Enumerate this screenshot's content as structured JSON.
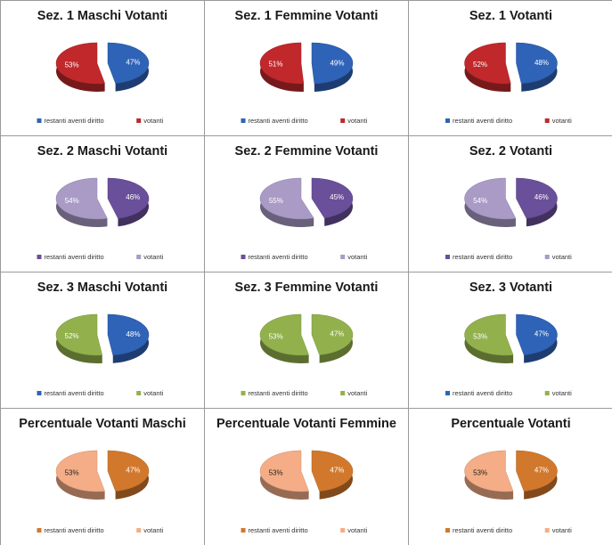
{
  "colors": {
    "red": "#c0282b",
    "blue": "#2e63b8",
    "purple_dark": "#6a4f9a",
    "purple_light": "#a99bc6",
    "green": "#92b14c",
    "orange_dark": "#d2782c",
    "orange_light": "#f4ad86"
  },
  "chart_data": [
    {
      "type": "pie",
      "title": "Sez. 1 Maschi Votanti",
      "slices": [
        {
          "name": "restanti aventi diritto",
          "value": 47,
          "label": "47%",
          "color": "#2e63b8"
        },
        {
          "name": "votanti",
          "value": 53,
          "label": "53%",
          "color": "#c0282b"
        }
      ]
    },
    {
      "type": "pie",
      "title": "Sez. 1  Femmine Votanti",
      "slices": [
        {
          "name": "restanti aventi diritto",
          "value": 49,
          "label": "49%",
          "color": "#2e63b8"
        },
        {
          "name": "votanti",
          "value": 51,
          "label": "51%",
          "color": "#c0282b"
        }
      ]
    },
    {
      "type": "pie",
      "title": "Sez. 1  Votanti",
      "slices": [
        {
          "name": "restanti aventi diritto",
          "value": 48,
          "label": "48%",
          "color": "#2e63b8"
        },
        {
          "name": "votanti",
          "value": 52,
          "label": "52%",
          "color": "#c0282b"
        }
      ]
    },
    {
      "type": "pie",
      "title": "Sez. 2  Maschi Votanti",
      "slices": [
        {
          "name": "restanti aventi diritto",
          "value": 46,
          "label": "46%",
          "color": "#6a4f9a"
        },
        {
          "name": "votanti",
          "value": 54,
          "label": "54%",
          "color": "#a99bc6"
        }
      ]
    },
    {
      "type": "pie",
      "title": "Sez. 2 Femmine Votanti",
      "slices": [
        {
          "name": "restanti aventi diritto",
          "value": 45,
          "label": "45%",
          "color": "#6a4f9a"
        },
        {
          "name": "votanti",
          "value": 55,
          "label": "55%",
          "color": "#a99bc6"
        }
      ]
    },
    {
      "type": "pie",
      "title": "Sez. 2  Votanti",
      "slices": [
        {
          "name": "restanti aventi diritto",
          "value": 46,
          "label": "46%",
          "color": "#6a4f9a"
        },
        {
          "name": "votanti",
          "value": 54,
          "label": "54%",
          "color": "#a99bc6"
        }
      ]
    },
    {
      "type": "pie",
      "title": "Sez. 3 Maschi Votanti",
      "slices": [
        {
          "name": "restanti aventi diritto",
          "value": 48,
          "label": "48%",
          "color": "#2e63b8"
        },
        {
          "name": "votanti",
          "value": 52,
          "label": "52%",
          "color": "#92b14c"
        }
      ]
    },
    {
      "type": "pie",
      "title": "Sez. 3  Femmine Votanti",
      "slices": [
        {
          "name": "restanti aventi diritto",
          "value": 47,
          "label": "47%",
          "color": "#92b14c"
        },
        {
          "name": "votanti",
          "value": 53,
          "label": "53%",
          "color": "#92b14c"
        }
      ]
    },
    {
      "type": "pie",
      "title": "Sez. 3  Votanti",
      "slices": [
        {
          "name": "restanti aventi diritto",
          "value": 47,
          "label": "47%",
          "color": "#2e63b8"
        },
        {
          "name": "votanti",
          "value": 53,
          "label": "53%",
          "color": "#92b14c"
        }
      ]
    },
    {
      "type": "pie",
      "title": "Percentuale  Votanti Maschi",
      "slices": [
        {
          "name": "restanti aventi diritto",
          "value": 47,
          "label": "47%",
          "color": "#d2782c"
        },
        {
          "name": "votanti",
          "value": 53,
          "label": "53%",
          "color": "#f4ad86"
        }
      ]
    },
    {
      "type": "pie",
      "title": "Percentuale Votanti Femmine",
      "slices": [
        {
          "name": "restanti aventi diritto",
          "value": 47,
          "label": "47%",
          "color": "#d2782c"
        },
        {
          "name": "votanti",
          "value": 53,
          "label": "53%",
          "color": "#f4ad86"
        }
      ]
    },
    {
      "type": "pie",
      "title": "Percentuale Votanti",
      "slices": [
        {
          "name": "restanti aventi diritto",
          "value": 47,
          "label": "47%",
          "color": "#d2782c"
        },
        {
          "name": "votanti",
          "value": 53,
          "label": "53%",
          "color": "#f4ad86"
        }
      ]
    }
  ]
}
